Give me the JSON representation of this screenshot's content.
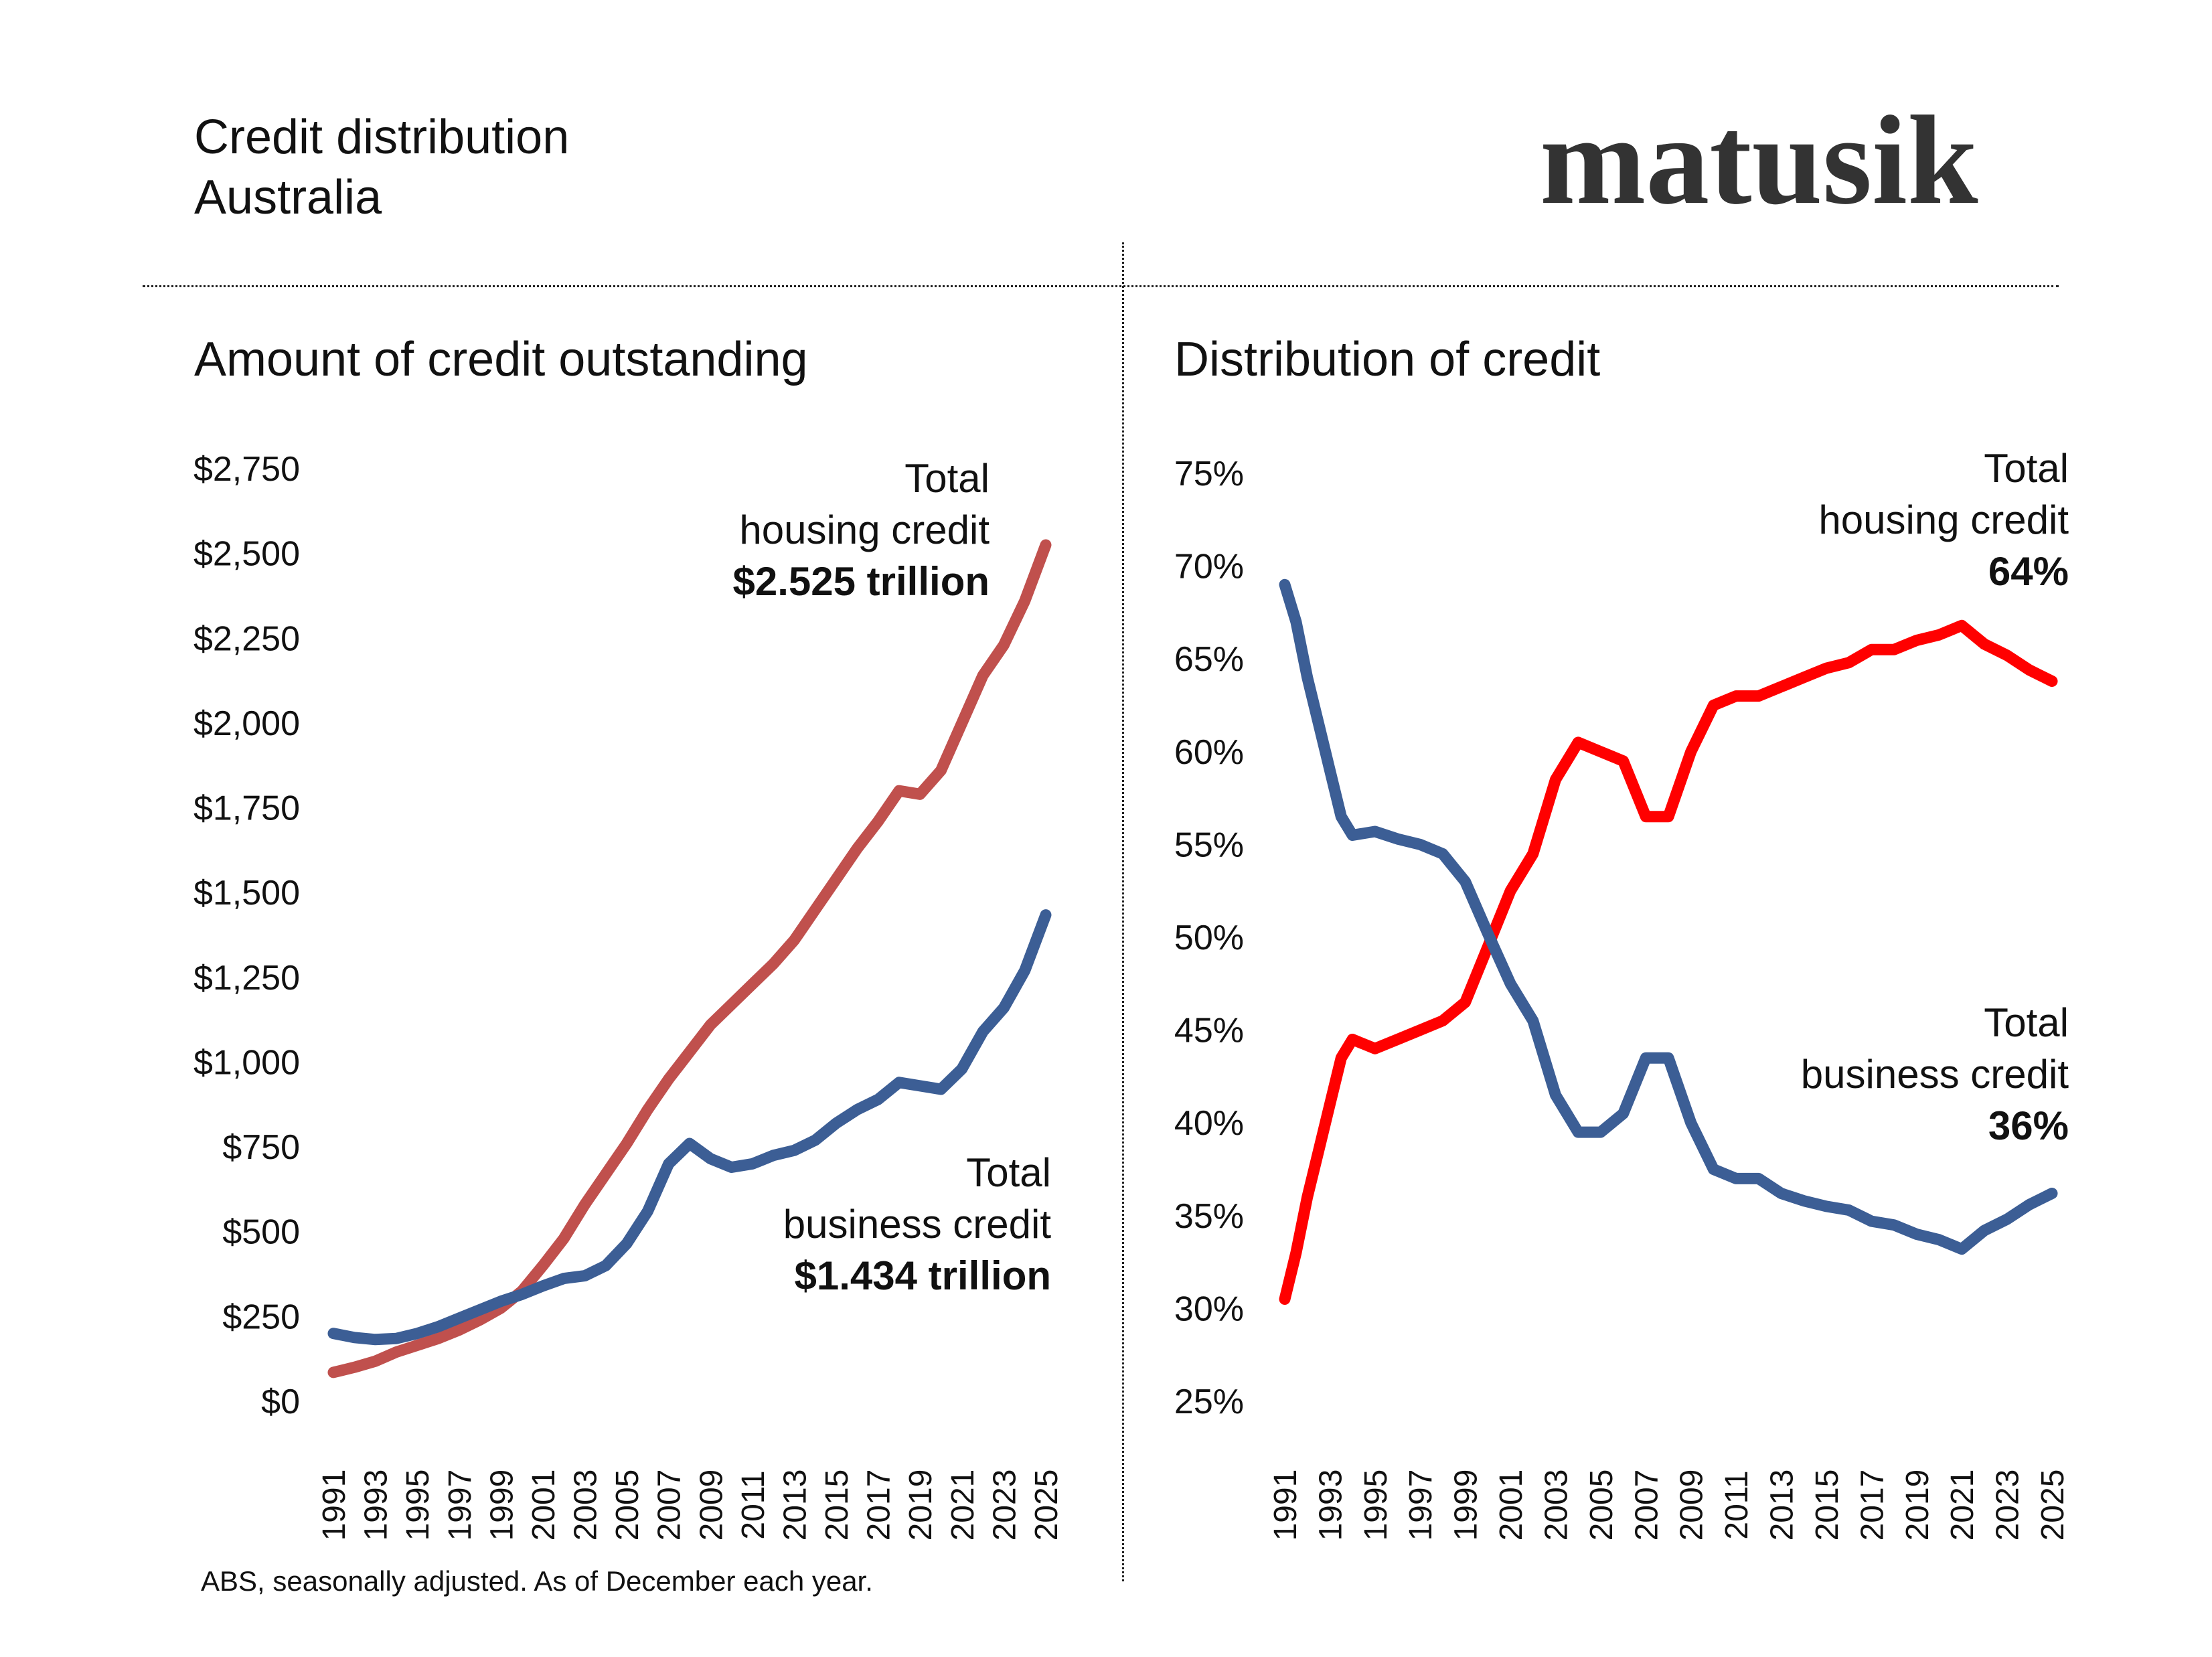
{
  "header": {
    "title": "Credit distribution",
    "subtitle": "Australia",
    "brand": "matusik"
  },
  "footer": {
    "source": "ABS, seasonally adjusted.  As of December each year."
  },
  "colors": {
    "housing_left": "#c0504d",
    "business": "#3c5e95",
    "housing_right": "#ff0000"
  },
  "chart_data": [
    {
      "type": "line",
      "title": "Amount of credit outstanding",
      "xlabel": "",
      "ylabel": "",
      "x_ticks": [
        "1991",
        "1993",
        "1995",
        "1997",
        "1999",
        "2001",
        "2003",
        "2005",
        "2007",
        "2009",
        "2011",
        "2013",
        "2015",
        "2017",
        "2019",
        "2021",
        "2023",
        "2025"
      ],
      "y_ticks": [
        "$0",
        "$250",
        "$500",
        "$750",
        "$1,000",
        "$1,250",
        "$1,500",
        "$1,750",
        "$2,000",
        "$2,250",
        "$2,500",
        "$2,750"
      ],
      "ylim": [
        0,
        2750
      ],
      "xlim": [
        1991,
        2025
      ],
      "series": [
        {
          "name": "Total housing credit",
          "color": "#c0504d",
          "points": [
            [
              1991,
              85
            ],
            [
              1992,
              100
            ],
            [
              1993,
              118
            ],
            [
              1994,
              145
            ],
            [
              1995,
              165
            ],
            [
              1996,
              185
            ],
            [
              1997,
              210
            ],
            [
              1998,
              240
            ],
            [
              1999,
              275
            ],
            [
              2000,
              325
            ],
            [
              2001,
              400
            ],
            [
              2002,
              480
            ],
            [
              2003,
              580
            ],
            [
              2004,
              670
            ],
            [
              2005,
              760
            ],
            [
              2006,
              860
            ],
            [
              2007,
              950
            ],
            [
              2008,
              1030
            ],
            [
              2009,
              1110
            ],
            [
              2010,
              1170
            ],
            [
              2011,
              1230
            ],
            [
              2012,
              1290
            ],
            [
              2013,
              1360
            ],
            [
              2014,
              1450
            ],
            [
              2015,
              1540
            ],
            [
              2016,
              1630
            ],
            [
              2017,
              1710
            ],
            [
              2018,
              1800
            ],
            [
              2019,
              1790
            ],
            [
              2020,
              1860
            ],
            [
              2021,
              2000
            ],
            [
              2022,
              2140
            ],
            [
              2023,
              2230
            ],
            [
              2024,
              2360
            ],
            [
              2025,
              2525
            ]
          ]
        },
        {
          "name": "Total business credit",
          "color": "#3c5e95",
          "points": [
            [
              1991,
              200
            ],
            [
              1992,
              188
            ],
            [
              1993,
              182
            ],
            [
              1994,
              185
            ],
            [
              1995,
              200
            ],
            [
              1996,
              220
            ],
            [
              1997,
              245
            ],
            [
              1998,
              270
            ],
            [
              1999,
              295
            ],
            [
              2000,
              315
            ],
            [
              2001,
              340
            ],
            [
              2002,
              362
            ],
            [
              2003,
              370
            ],
            [
              2004,
              400
            ],
            [
              2005,
              465
            ],
            [
              2006,
              560
            ],
            [
              2007,
              700
            ],
            [
              2008,
              760
            ],
            [
              2009,
              715
            ],
            [
              2010,
              690
            ],
            [
              2011,
              700
            ],
            [
              2012,
              725
            ],
            [
              2013,
              740
            ],
            [
              2014,
              770
            ],
            [
              2015,
              820
            ],
            [
              2016,
              860
            ],
            [
              2017,
              890
            ],
            [
              2018,
              940
            ],
            [
              2019,
              930
            ],
            [
              2020,
              920
            ],
            [
              2021,
              980
            ],
            [
              2022,
              1090
            ],
            [
              2023,
              1160
            ],
            [
              2024,
              1270
            ],
            [
              2025,
              1434
            ]
          ]
        }
      ],
      "annotations": {
        "housing": {
          "line1": "Total",
          "line2": "housing credit",
          "value": "$2.525 trillion"
        },
        "business": {
          "line1": "Total",
          "line2": "business credit",
          "value": "$1.434 trillion"
        }
      }
    },
    {
      "type": "line",
      "title": "Distribution of credit",
      "xlabel": "",
      "ylabel": "",
      "x_ticks": [
        "1991",
        "1993",
        "1995",
        "1997",
        "1999",
        "2001",
        "2003",
        "2005",
        "2007",
        "2009",
        "2011",
        "2013",
        "2015",
        "2017",
        "2019",
        "2021",
        "2023",
        "2025"
      ],
      "y_ticks": [
        "25%",
        "30%",
        "35%",
        "40%",
        "45%",
        "50%",
        "55%",
        "60%",
        "65%",
        "70%",
        "75%"
      ],
      "ylim": [
        25,
        75
      ],
      "xlim": [
        1991,
        2025
      ],
      "series": [
        {
          "name": "Total housing credit",
          "color": "#ff0000",
          "points": [
            [
              1991,
              30.5
            ],
            [
              1991.5,
              33
            ],
            [
              1992,
              36
            ],
            [
              1992.5,
              38.5
            ],
            [
              1993,
              41
            ],
            [
              1993.5,
              43.5
            ],
            [
              1994,
              44.5
            ],
            [
              1995,
              44
            ],
            [
              1996,
              44.5
            ],
            [
              1997,
              45
            ],
            [
              1998,
              45.5
            ],
            [
              1999,
              46.5
            ],
            [
              2000,
              49.5
            ],
            [
              2001,
              52.5
            ],
            [
              2002,
              54.5
            ],
            [
              2003,
              58.5
            ],
            [
              2004,
              60.5
            ],
            [
              2005,
              60
            ],
            [
              2006,
              59.5
            ],
            [
              2007,
              56.5
            ],
            [
              2008,
              56.5
            ],
            [
              2009,
              60
            ],
            [
              2010,
              62.5
            ],
            [
              2011,
              63
            ],
            [
              2012,
              63
            ],
            [
              2013,
              63.5
            ],
            [
              2014,
              64
            ],
            [
              2015,
              64.5
            ],
            [
              2016,
              64.8
            ],
            [
              2017,
              65.5
            ],
            [
              2018,
              65.5
            ],
            [
              2019,
              66
            ],
            [
              2020,
              66.3
            ],
            [
              2021,
              66.8
            ],
            [
              2022,
              65.8
            ],
            [
              2023,
              65.2
            ],
            [
              2024,
              64.4
            ],
            [
              2025,
              63.8
            ]
          ]
        },
        {
          "name": "Total business credit",
          "color": "#3c5e95",
          "points": [
            [
              1991,
              69
            ],
            [
              1991.5,
              67
            ],
            [
              1992,
              64
            ],
            [
              1992.5,
              61.5
            ],
            [
              1993,
              59
            ],
            [
              1993.5,
              56.5
            ],
            [
              1994,
              55.5
            ],
            [
              1995,
              55.7
            ],
            [
              1996,
              55.3
            ],
            [
              1997,
              55
            ],
            [
              1998,
              54.5
            ],
            [
              1999,
              53
            ],
            [
              2000,
              50.2
            ],
            [
              2001,
              47.5
            ],
            [
              2002,
              45.5
            ],
            [
              2003,
              41.5
            ],
            [
              2004,
              39.5
            ],
            [
              2005,
              39.5
            ],
            [
              2006,
              40.5
            ],
            [
              2007,
              43.5
            ],
            [
              2008,
              43.5
            ],
            [
              2009,
              40
            ],
            [
              2010,
              37.5
            ],
            [
              2011,
              37
            ],
            [
              2012,
              37
            ],
            [
              2013,
              36.2
            ],
            [
              2014,
              35.8
            ],
            [
              2015,
              35.5
            ],
            [
              2016,
              35.3
            ],
            [
              2017,
              34.7
            ],
            [
              2018,
              34.5
            ],
            [
              2019,
              34
            ],
            [
              2020,
              33.7
            ],
            [
              2021,
              33.2
            ],
            [
              2022,
              34.2
            ],
            [
              2023,
              34.8
            ],
            [
              2024,
              35.6
            ],
            [
              2025,
              36.2
            ]
          ]
        }
      ],
      "annotations": {
        "housing": {
          "line1": "Total",
          "line2": "housing credit",
          "value": "64%"
        },
        "business": {
          "line1": "Total",
          "line2": "business credit",
          "value": "36%"
        }
      }
    }
  ]
}
